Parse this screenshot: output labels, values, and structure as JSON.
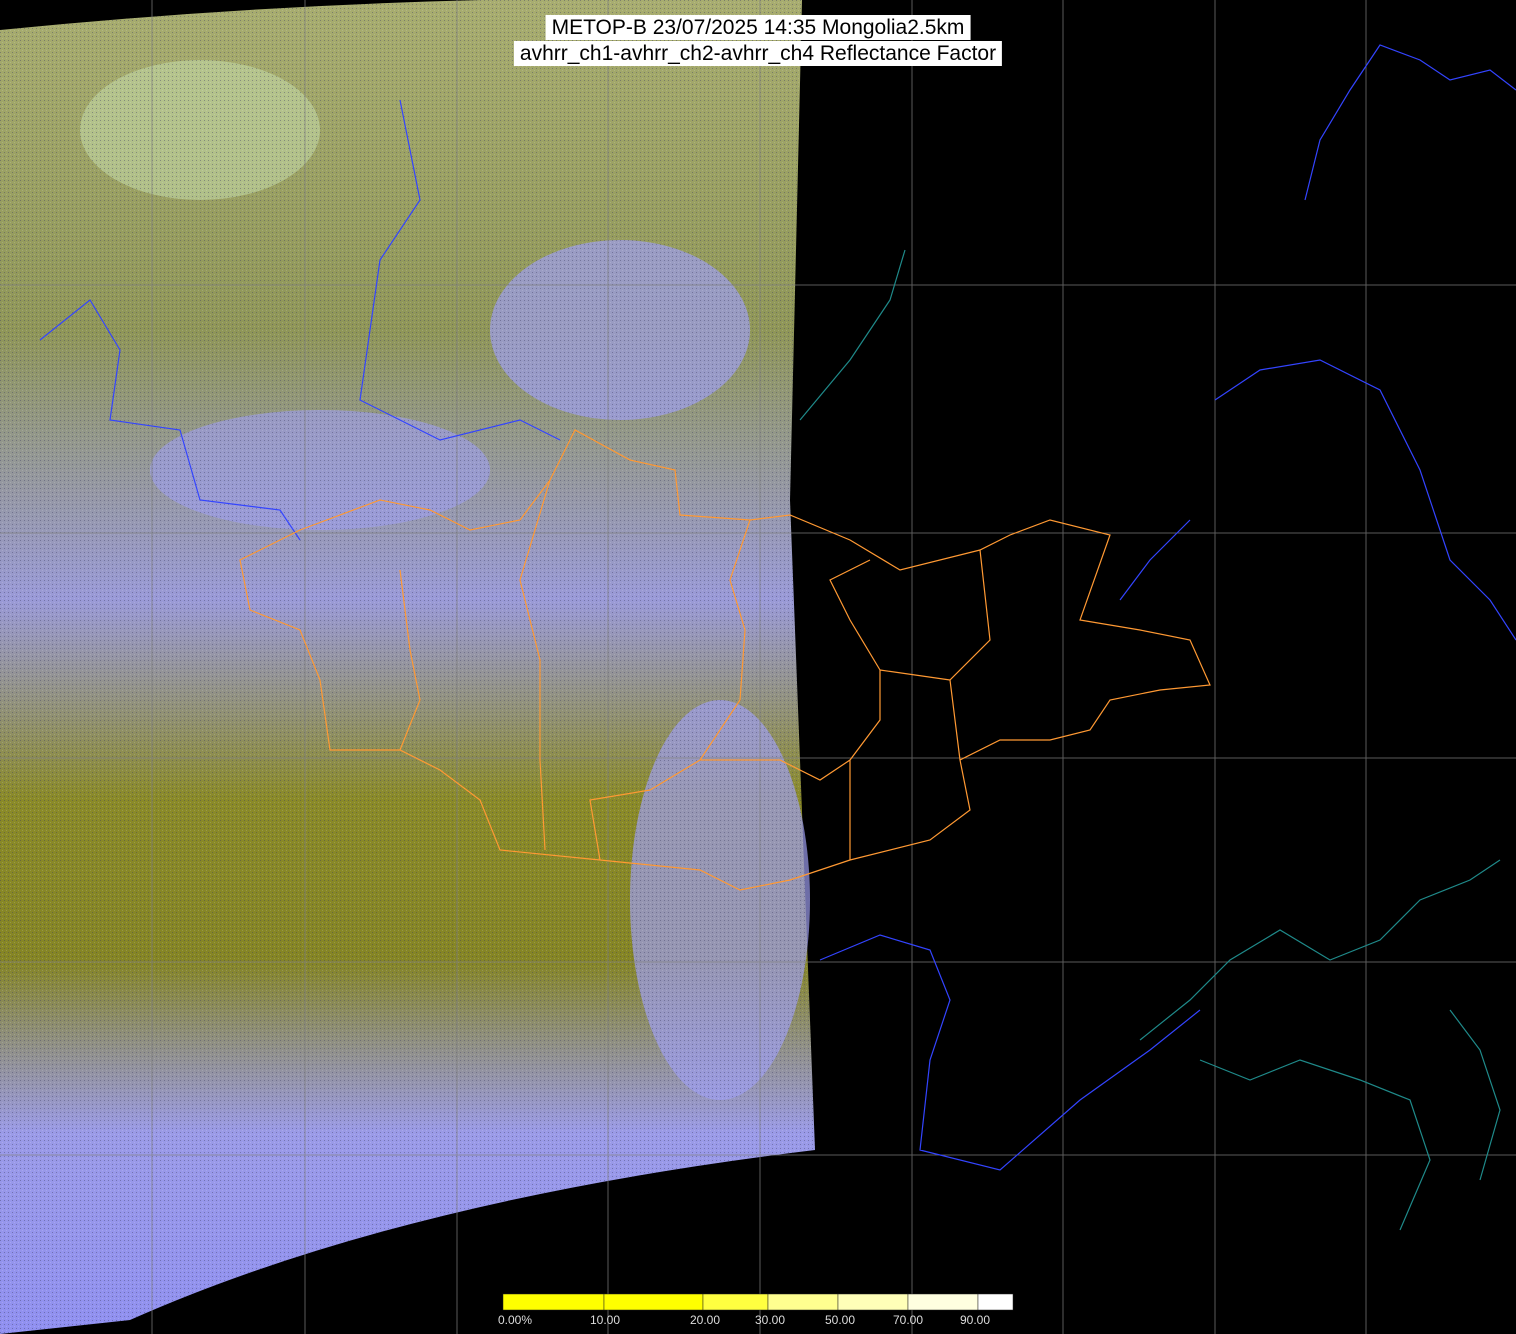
{
  "title": {
    "line1": "METOP-B 23/07/2025 14:35 Mongolia2.5km",
    "line2": "avhrr_ch1-avhrr_ch2-avhrr_ch4 Reflectance Factor"
  },
  "colorbar": {
    "labels": [
      "0.00%",
      "10.00",
      "20.00",
      "30.00",
      "50.00",
      "70.00",
      "90.00"
    ],
    "colors": [
      "#ffff00",
      "#ffff00",
      "#ffff40",
      "#ffff90",
      "#ffffb8",
      "#ffffe0",
      "#ffffff"
    ]
  },
  "colors": {
    "background": "#000000",
    "grid": "#808080",
    "borders_country": "#3344ff",
    "borders_province": "#ff9933",
    "coast": "#1f8a8a",
    "clear_land": "#8a8a30",
    "cloud": "#9c9cf0"
  }
}
